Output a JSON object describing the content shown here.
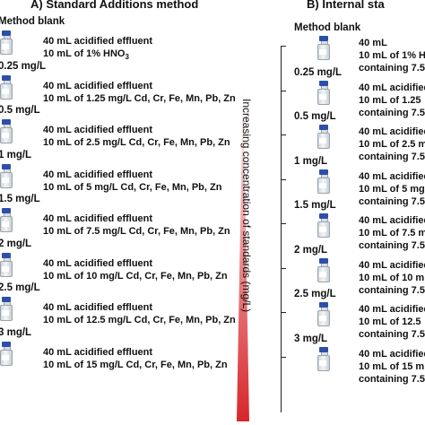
{
  "panel_a": {
    "title": "A) Standard Additions method",
    "levels": [
      {
        "label": "Method blank",
        "line1": "40 mL acidified effluent",
        "line2_pre": "10 mL of 1% HNO",
        "line2_sub": "3"
      },
      {
        "label": "0.25 mg/L",
        "line1": "40 mL acidified effluent",
        "line2_pre": "10 mL of 1.25 mg/L Cd, Cr, Fe, Mn, Pb, Zn",
        "line2_sub": ""
      },
      {
        "label": "0.5 mg/L",
        "line1": "40 mL acidified effluent",
        "line2_pre": "10 mL of 2.5 mg/L Cd, Cr, Fe, Mn, Pb, Zn",
        "line2_sub": ""
      },
      {
        "label": "1 mg/L",
        "line1": "40 mL acidified effluent",
        "line2_pre": "10 mL of 5 mg/L Cd, Cr, Fe, Mn, Pb, Zn",
        "line2_sub": ""
      },
      {
        "label": "1.5 mg/L",
        "line1": "40 mL acidified effluent",
        "line2_pre": "10 mL of 7.5 mg/L Cd, Cr, Fe, Mn, Pb, Zn",
        "line2_sub": ""
      },
      {
        "label": "2 mg/L",
        "line1": "40 mL acidified effluent",
        "line2_pre": "10 mL of 10 mg/L Cd, Cr, Fe, Mn, Pb, Zn",
        "line2_sub": ""
      },
      {
        "label": "2.5 mg/L",
        "line1": "40 mL acidified effluent",
        "line2_pre": "10 mL of 12.5 mg/L Cd, Cr, Fe, Mn, Pb, Zn",
        "line2_sub": ""
      },
      {
        "label": "3 mg/L",
        "line1": "40 mL acidified effluent",
        "line2_pre": "10 mL of 15 mg/L Cd, Cr, Fe, Mn, Pb, Zn",
        "line2_sub": ""
      }
    ]
  },
  "gradient": {
    "label": "Increasing concentration of standards (mg/L)",
    "color_top": "#ffffff",
    "color_bottom": "#d7262b"
  },
  "panel_b": {
    "title": "B) Internal sta",
    "levels": [
      {
        "label": "Method blank",
        "line1": "40 mL",
        "line2": "10 mL of 1% H",
        "line3": "containing 7.5"
      },
      {
        "label": "0.25 mg/L",
        "line1": "40 mL acidified e",
        "line2": "10 mL of 1.25",
        "line3": "containing 7.5"
      },
      {
        "label": "0.5 mg/L",
        "line1": "40 mL acidified e",
        "line2": "10 mL of 2.5 m",
        "line3": "containing 7.5"
      },
      {
        "label": "1 mg/L",
        "line1": "40 mL acidified e",
        "line2": "10 mL of 5 mg",
        "line3": "containing 7.5"
      },
      {
        "label": "1.5 mg/L",
        "line1": "40 mL acidified e",
        "line2": "10 mL of 7.5 m",
        "line3": "containing 7.5"
      },
      {
        "label": "2 mg/L",
        "line1": "40 mL acidified",
        "line2": "10 mL of 10 m",
        "line3": "containing 7.5"
      },
      {
        "label": "2.5 mg/L",
        "line1": "40 mL acidified",
        "line2": "10 mL of 12.5",
        "line3": "containing 7.5"
      },
      {
        "label": "3 mg/L",
        "line1": "40 mL acidified",
        "line2": "10 mL of 15 m",
        "line3": "containing 7.5"
      }
    ]
  }
}
